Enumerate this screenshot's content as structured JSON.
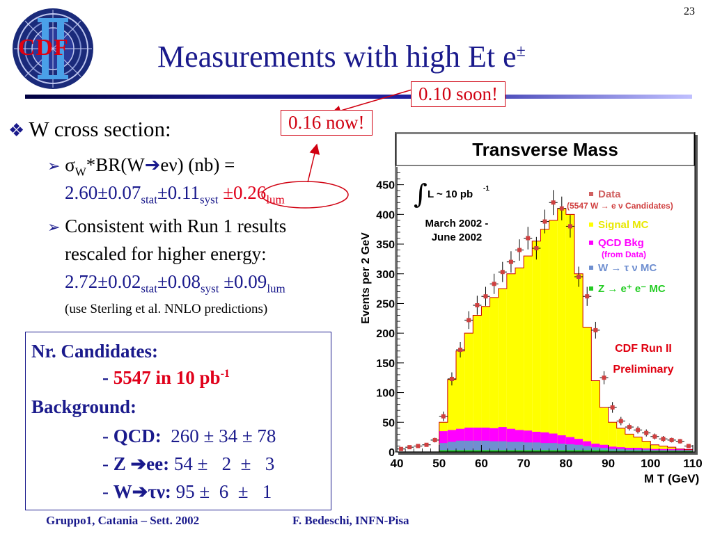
{
  "page_number": "23",
  "logo": {
    "text": "CDF",
    "roman": "II"
  },
  "title": {
    "main": "Measurements with high Et e",
    "sup": "±"
  },
  "callouts": {
    "soon": "0.10 soon!",
    "now": "0.16 now!"
  },
  "bullets": {
    "b1": "W cross section:",
    "s1_line1": "σ",
    "s1_sub": "W",
    "s1_rest": "*BR(W",
    "s1_rest2": "eν) (nb) =",
    "s1_line2_a": "2.60±0.07",
    "s1_stat": "stat",
    "s1_line2_b": "±0.11",
    "s1_syst": "syst",
    "s1_line2_c": "±0.26",
    "s1_lum": "lum",
    "s2_line1": "Consistent with Run 1 results",
    "s2_line2": "rescaled for higher energy:",
    "s2_line3_a": "2.72±0.02",
    "s2_stat": "stat",
    "s2_line3_b": "±0.08",
    "s2_syst": "syst",
    "s2_line3_c": " ±0.09",
    "s2_lum": "lum",
    "s2_note": "(use Sterling et al. NNLO predictions)"
  },
  "box": {
    "cand_label": "Nr. Candidates:",
    "cand_dash": "- ",
    "cand_value": "5547 in 10 pb",
    "cand_sup": "-1",
    "bkg_label": "Background:",
    "qcd_dash": "- ",
    "qcd_label": "QCD:",
    "qcd_value": "  260 ± 34 ± 78",
    "z_dash": "- ",
    "z_label": "Z ",
    "z_label2": "ee:",
    "z_value": " 54 ±   2  ±   3",
    "w_dash": "- ",
    "w_label": "W",
    "w_label2": "τν:",
    "w_value": " 95 ±  6  ±   1"
  },
  "footer": {
    "left": "Gruppo1, Catania – Sett. 2002",
    "right": "F. Bedeschi, INFN-Pisa"
  },
  "colors": {
    "navy": "#1a1a8c",
    "red": "#e0001a",
    "signal": "#ffff00",
    "qcd": "#ff00ff",
    "wtau": "#6f8fd0",
    "zee": "#22cc22",
    "data": "#d04040"
  },
  "chart_data": {
    "type": "bar",
    "title": "Transverse Mass",
    "xlabel": "M_T (GeV)",
    "ylabel": "Events per 2 GeV",
    "xlim": [
      40,
      110
    ],
    "ylim": [
      0,
      480
    ],
    "xticks": [
      "40",
      "50",
      "60",
      "70",
      "80",
      "90",
      "100",
      "110"
    ],
    "yticks": [
      "0",
      "50",
      "100",
      "150",
      "200",
      "250",
      "300",
      "350",
      "400",
      "450"
    ],
    "annotation_lumi": "L ~ 10 pb",
    "annotation_lumi_sup": "-1",
    "annotation_date": [
      "March 2002 -",
      "June 2002"
    ],
    "label_run": "CDF Run II",
    "label_prelim": "Preliminary",
    "legend": [
      {
        "name": "Data",
        "sub": "(5547 W → e ν Candidates)",
        "color": "#d06060"
      },
      {
        "name": "Signal MC",
        "color": "#ffff00"
      },
      {
        "name": "QCD Bkg",
        "sub": "(from Data)",
        "color": "#ff00ff"
      },
      {
        "name": "W → τ ν MC",
        "color": "#6f8fd0"
      },
      {
        "name": "Z → e⁺ e⁻ MC",
        "color": "#22cc22"
      }
    ],
    "bin_width": 2,
    "bin_start": [
      50,
      52,
      54,
      56,
      58,
      60,
      62,
      64,
      66,
      68,
      70,
      72,
      74,
      76,
      78,
      80,
      82,
      84,
      86,
      88,
      90,
      92,
      94,
      96,
      98,
      100,
      102,
      104,
      106,
      108
    ],
    "total_mc": [
      50,
      122,
      170,
      200,
      230,
      245,
      260,
      275,
      300,
      310,
      330,
      355,
      375,
      390,
      410,
      400,
      300,
      210,
      120,
      75,
      50,
      40,
      30,
      25,
      18,
      12,
      10,
      8,
      5,
      4
    ],
    "qcd": [
      20,
      20,
      20,
      22,
      22,
      22,
      22,
      24,
      22,
      20,
      20,
      18,
      18,
      16,
      14,
      12,
      10,
      8,
      6,
      5,
      4,
      3,
      3,
      3,
      2,
      2,
      2,
      2,
      2,
      2
    ],
    "wtau": [
      12,
      14,
      16,
      16,
      16,
      16,
      15,
      15,
      14,
      14,
      13,
      13,
      12,
      12,
      11,
      10,
      9,
      7,
      5,
      4,
      3,
      3,
      2,
      2,
      2,
      1,
      1,
      1,
      1,
      1
    ],
    "zee": [
      3,
      3,
      3,
      3,
      3,
      3,
      3,
      3,
      3,
      3,
      3,
      3,
      3,
      3,
      3,
      3,
      3,
      3,
      3,
      3,
      2,
      2,
      2,
      2,
      2,
      2,
      2,
      2,
      2,
      2
    ],
    "data_x": [
      41,
      43,
      45,
      47,
      49,
      51,
      53,
      55,
      57,
      59,
      61,
      63,
      65,
      67,
      69,
      71,
      73,
      75,
      77,
      79,
      81,
      83,
      85,
      87,
      89,
      91,
      93,
      95,
      97,
      99,
      101,
      103,
      105,
      107,
      109
    ],
    "data_y": [
      5,
      8,
      10,
      12,
      20,
      60,
      123,
      172,
      222,
      247,
      262,
      283,
      303,
      320,
      340,
      360,
      343,
      388,
      420,
      410,
      380,
      295,
      262,
      205,
      125,
      75,
      52,
      42,
      37,
      32,
      26,
      22,
      20,
      18,
      10
    ],
    "data_err": [
      2,
      3,
      3,
      3,
      4,
      8,
      11,
      13,
      15,
      16,
      16,
      17,
      17,
      18,
      18,
      19,
      19,
      20,
      21,
      20,
      19,
      17,
      16,
      14,
      11,
      9,
      7,
      6,
      6,
      6,
      5,
      5,
      4,
      4,
      3
    ]
  }
}
